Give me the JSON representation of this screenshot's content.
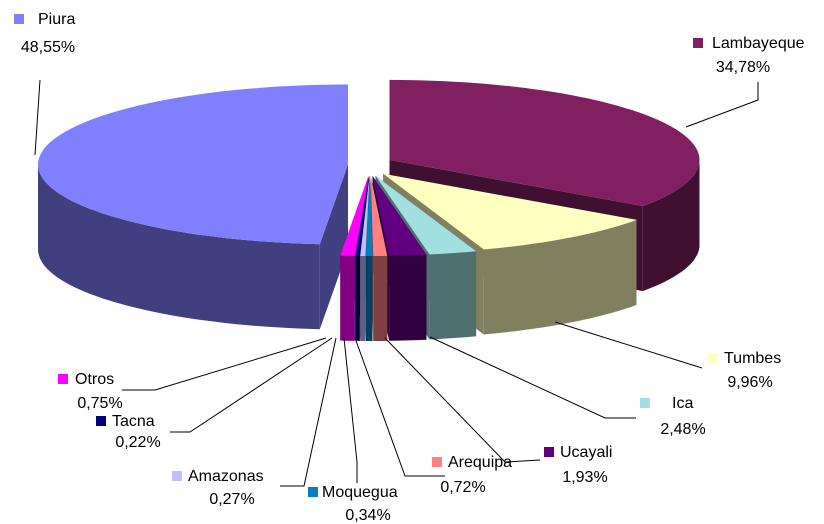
{
  "chart_data": {
    "type": "pie",
    "categories": [
      "Lambayeque",
      "Tumbes",
      "Ica",
      "Ucayali",
      "Arequipa",
      "Moquegua",
      "Amazonas",
      "Tacna",
      "Otros",
      "Piura"
    ],
    "values": [
      34.78,
      9.96,
      2.48,
      1.93,
      0.72,
      0.34,
      0.27,
      0.22,
      0.75,
      48.55
    ],
    "value_labels": [
      "34,78%",
      "9,96%",
      "2,48%",
      "1,93%",
      "0,72%",
      "0,34%",
      "0,27%",
      "0,22%",
      "0,75%",
      "48,55%"
    ],
    "colors": [
      "#802060",
      "#ffffc0",
      "#a0e0e0",
      "#600080",
      "#ff8080",
      "#0080c0",
      "#c0c0ff",
      "#000080",
      "#ff00ff",
      "#8080ff"
    ]
  }
}
